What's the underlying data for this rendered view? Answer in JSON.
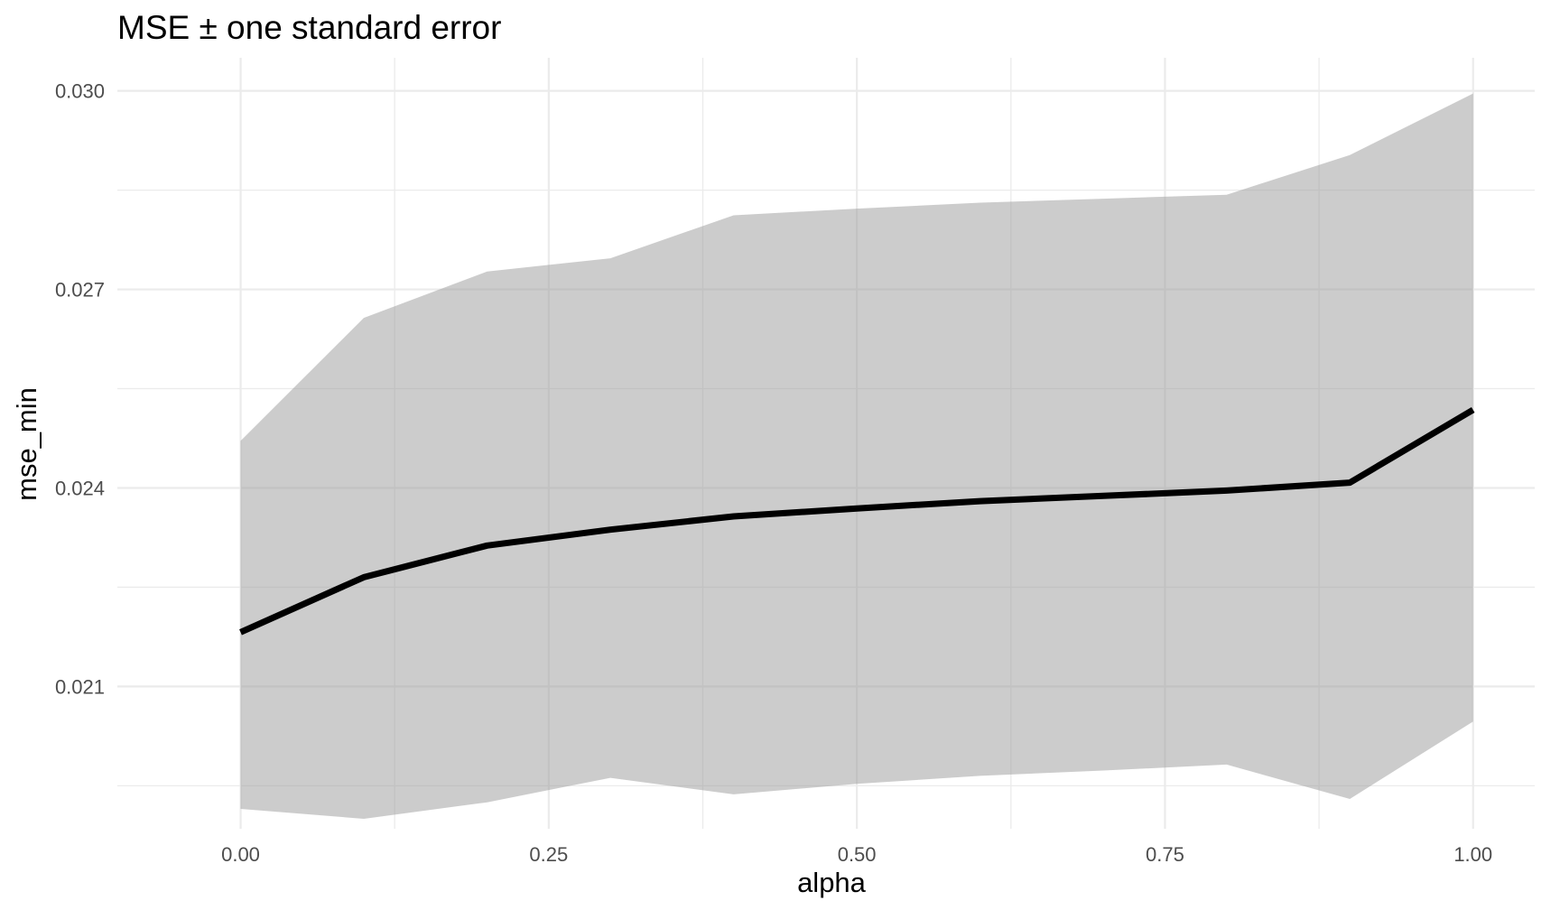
{
  "chart_data": {
    "type": "area",
    "title": "MSE ± one standard error",
    "xlabel": "alpha",
    "ylabel": "mse_min",
    "xlim": [
      -0.1,
      1.05
    ],
    "ylim": [
      0.01885,
      0.0305
    ],
    "x_ticks": [
      0.0,
      0.25,
      0.5,
      0.75,
      1.0
    ],
    "x_tick_labels": [
      "0.00",
      "0.25",
      "0.50",
      "0.75",
      "1.00"
    ],
    "y_ticks": [
      0.021,
      0.024,
      0.027,
      0.03
    ],
    "y_tick_labels": [
      "0.021",
      "0.024",
      "0.027",
      "0.030"
    ],
    "grid": true,
    "legend": "none",
    "colors": {
      "line": "#000000",
      "band": "#999999",
      "grid": "#ebebeb",
      "tick_text": "#4d4d4d"
    },
    "series": [
      {
        "x": [
          0.0,
          0.1,
          0.2,
          0.3,
          0.4,
          0.5,
          0.6,
          0.7,
          0.8,
          0.9,
          1.0
        ],
        "mse_min": [
          0.02182,
          0.02265,
          0.02313,
          0.02337,
          0.02357,
          0.02369,
          0.0238,
          0.02388,
          0.02396,
          0.02408,
          0.02518
        ],
        "lower": [
          0.01915,
          0.019,
          0.01925,
          0.01962,
          0.01937,
          0.01953,
          0.01965,
          0.01973,
          0.01982,
          0.0193,
          0.02047
        ],
        "upper": [
          0.02471,
          0.02657,
          0.02727,
          0.02747,
          0.02812,
          0.02822,
          0.02831,
          0.02837,
          0.02843,
          0.02903,
          0.02996
        ]
      }
    ]
  }
}
